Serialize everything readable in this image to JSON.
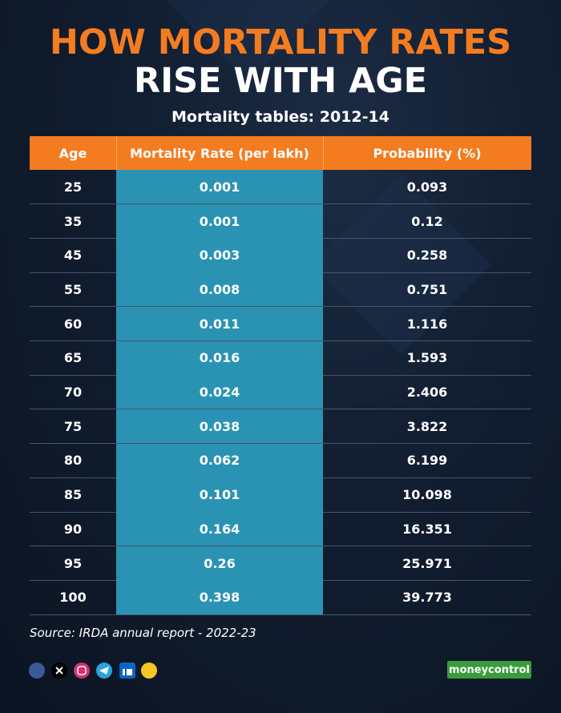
{
  "header": {
    "title_line1": "HOW MORTALITY RATES",
    "title_line2": "RISE WITH AGE",
    "subtitle": "Mortality tables: 2012-14"
  },
  "table": {
    "columns": [
      "Age",
      "Mortality Rate (per lakh)",
      "Probability (%)"
    ],
    "rows": [
      [
        "25",
        "0.001",
        "0.093"
      ],
      [
        "35",
        "0.001",
        "0.12"
      ],
      [
        "45",
        "0.003",
        "0.258"
      ],
      [
        "55",
        "0.008",
        "0.751"
      ],
      [
        "60",
        "0.011",
        "1.116"
      ],
      [
        "65",
        "0.016",
        "1.593"
      ],
      [
        "70",
        "0.024",
        "2.406"
      ],
      [
        "75",
        "0.038",
        "3.822"
      ],
      [
        "80",
        "0.062",
        "6.199"
      ],
      [
        "85",
        "0.101",
        "10.098"
      ],
      [
        "90",
        "0.164",
        "16.351"
      ],
      [
        "95",
        "0.26",
        "25.971"
      ],
      [
        "100",
        "0.398",
        "39.773"
      ]
    ]
  },
  "footer": {
    "source": "Source: IRDA annual report - 2022-23",
    "logo": "moneycontrol"
  }
}
